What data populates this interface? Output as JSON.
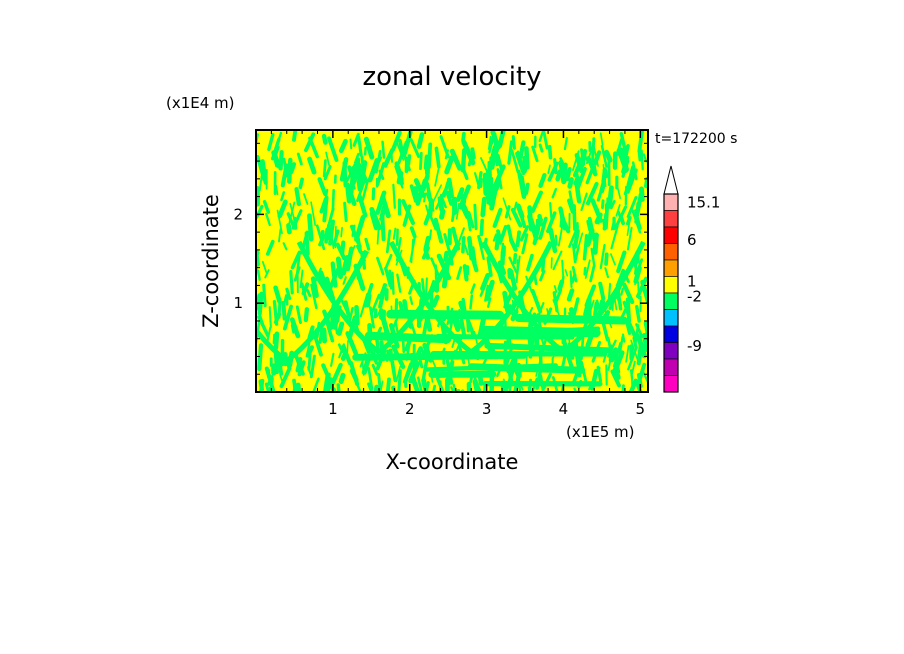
{
  "chart_data": {
    "type": "heatmap",
    "title": "zonal velocity",
    "xlabel": "X-coordinate",
    "ylabel": "Z-coordinate",
    "x_unit": "(x1E5 m)",
    "y_unit": "(x1E4 m)",
    "time_label": "t=172200 s",
    "xlim": [
      0,
      5.1
    ],
    "ylim": [
      0,
      2.95
    ],
    "xticks": [
      1,
      2,
      3,
      4,
      5
    ],
    "yticks": [
      1,
      2
    ],
    "field_colors": {
      "dominant": "#ffff00",
      "secondary": "#00ff60"
    },
    "colorbar": {
      "extend": "max",
      "labels": [
        "15.1",
        "6",
        "1",
        "-2",
        "-9"
      ],
      "bands": [
        {
          "color": "#ffb0b0"
        },
        {
          "color": "#ff4040"
        },
        {
          "color": "#ff0000"
        },
        {
          "color": "#ff6000"
        },
        {
          "color": "#ffa000"
        },
        {
          "color": "#ffff00"
        },
        {
          "color": "#00ff60"
        },
        {
          "color": "#00c0ff"
        },
        {
          "color": "#0000e0"
        },
        {
          "color": "#8000c0"
        },
        {
          "color": "#c000b0"
        },
        {
          "color": "#ff00c0"
        }
      ]
    }
  }
}
